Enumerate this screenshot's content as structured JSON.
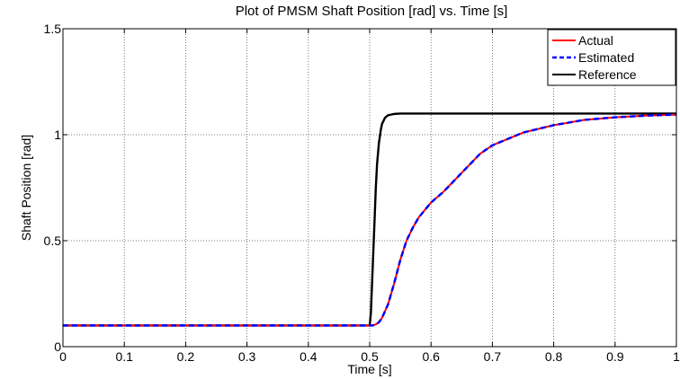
{
  "chart_data": {
    "type": "line",
    "title": "Plot of PMSM Shaft Position [rad] vs. Time [s]",
    "xlabel": "Time [s]",
    "ylabel": "Shaft Position [rad]",
    "xlim": [
      0,
      1
    ],
    "ylim": [
      0,
      1.5
    ],
    "xticks": [
      0,
      0.1,
      0.2,
      0.3,
      0.4,
      0.5,
      0.6,
      0.7,
      0.8,
      0.9,
      1
    ],
    "xtick_labels": [
      "0",
      "0.1",
      "0.2",
      "0.3",
      "0.4",
      "0.5",
      "0.6",
      "0.7",
      "0.8",
      "0.9",
      "1"
    ],
    "yticks": [
      0,
      0.5,
      1,
      1.5
    ],
    "ytick_labels": [
      "0",
      "0.5",
      "1",
      "1.5"
    ],
    "grid": true,
    "legend_position": "top-right",
    "series": [
      {
        "name": "Actual",
        "color": "#ff0000",
        "style": "solid",
        "x": [
          0,
          0.1,
          0.2,
          0.3,
          0.4,
          0.5,
          0.505,
          0.51,
          0.515,
          0.52,
          0.53,
          0.54,
          0.55,
          0.56,
          0.57,
          0.58,
          0.6,
          0.62,
          0.65,
          0.68,
          0.7,
          0.75,
          0.8,
          0.85,
          0.9,
          0.95,
          1
        ],
        "y": [
          0.1,
          0.1,
          0.1,
          0.1,
          0.1,
          0.1,
          0.1,
          0.105,
          0.115,
          0.135,
          0.2,
          0.3,
          0.41,
          0.5,
          0.56,
          0.61,
          0.68,
          0.73,
          0.82,
          0.91,
          0.95,
          1.01,
          1.045,
          1.07,
          1.082,
          1.09,
          1.095
        ]
      },
      {
        "name": "Estimated",
        "color": "#0000ff",
        "style": "dashed",
        "x": [
          0,
          0.1,
          0.2,
          0.3,
          0.4,
          0.5,
          0.505,
          0.51,
          0.515,
          0.52,
          0.53,
          0.54,
          0.55,
          0.56,
          0.57,
          0.58,
          0.6,
          0.62,
          0.65,
          0.68,
          0.7,
          0.75,
          0.8,
          0.85,
          0.9,
          0.95,
          1
        ],
        "y": [
          0.1,
          0.1,
          0.1,
          0.1,
          0.1,
          0.1,
          0.1,
          0.105,
          0.115,
          0.135,
          0.2,
          0.3,
          0.41,
          0.5,
          0.56,
          0.61,
          0.68,
          0.73,
          0.82,
          0.91,
          0.95,
          1.01,
          1.045,
          1.07,
          1.082,
          1.09,
          1.095
        ]
      },
      {
        "name": "Reference",
        "color": "#000000",
        "style": "solid",
        "x": [
          0,
          0.1,
          0.2,
          0.3,
          0.4,
          0.5,
          0.502,
          0.505,
          0.508,
          0.51,
          0.512,
          0.515,
          0.518,
          0.52,
          0.525,
          0.53,
          0.54,
          0.55,
          0.6,
          0.7,
          0.8,
          0.9,
          1
        ],
        "y": [
          0.1,
          0.1,
          0.1,
          0.1,
          0.1,
          0.1,
          0.16,
          0.38,
          0.6,
          0.75,
          0.86,
          0.96,
          1.02,
          1.05,
          1.08,
          1.092,
          1.098,
          1.1,
          1.1,
          1.1,
          1.1,
          1.1,
          1.1
        ]
      }
    ]
  }
}
